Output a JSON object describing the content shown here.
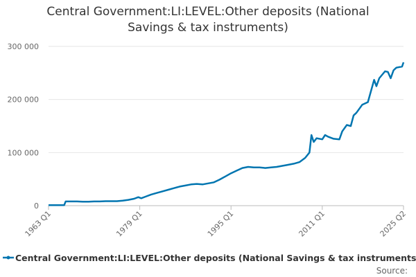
{
  "chart_data": {
    "type": "line",
    "title": "Central Government:LI:LEVEL:Other deposits (National Savings & tax instruments)",
    "source": "Source:",
    "x": [
      1963,
      1964,
      1965,
      1965.75,
      1966,
      1967,
      1968,
      1969,
      1970,
      1971,
      1972,
      1973,
      1974,
      1975,
      1976,
      1977,
      1978,
      1978.75,
      1979.25,
      1980,
      1981,
      1982,
      1983,
      1984,
      1985,
      1986,
      1987,
      1988,
      1989,
      1990,
      1991,
      1992,
      1993,
      1994,
      1995,
      1996,
      1997,
      1998,
      1999,
      2000,
      2001,
      2002,
      2003,
      2004,
      2005,
      2006,
      2007,
      2008,
      2008.75,
      2009.1,
      2009.5,
      2010,
      2011,
      2011.5,
      2012,
      2013,
      2014,
      2014.5,
      2015.3,
      2016,
      2016.5,
      2017,
      2018,
      2019,
      2020.1,
      2020.5,
      2021,
      2022,
      2022.5,
      2023,
      2023.5,
      2024,
      2025,
      2025.25
    ],
    "series": [
      {
        "name": "Central Government:LI:LEVEL:Other deposits (National Savings & tax instruments)",
        "color": "#0075b0",
        "values": [
          1000,
          1000,
          1000,
          1000,
          8000,
          8000,
          8000,
          7500,
          7500,
          8000,
          8000,
          8500,
          8500,
          8500,
          9500,
          11000,
          13000,
          16000,
          14000,
          17000,
          21000,
          24000,
          27000,
          30000,
          33000,
          36000,
          38000,
          40000,
          41000,
          40000,
          42000,
          44000,
          49000,
          55000,
          61000,
          66000,
          71000,
          73000,
          72000,
          72000,
          71000,
          72000,
          73000,
          75000,
          77000,
          79000,
          82000,
          90000,
          100000,
          133000,
          120000,
          127000,
          125000,
          133000,
          130000,
          126000,
          125000,
          140000,
          152000,
          150000,
          170000,
          175000,
          190000,
          195000,
          237000,
          225000,
          240000,
          253000,
          252000,
          240000,
          255000,
          260000,
          262000,
          270000
        ]
      }
    ],
    "xlim": [
      1963,
      2025.25
    ],
    "xticks": [
      {
        "value": 1963,
        "label": "1963 Q1"
      },
      {
        "value": 1979,
        "label": "1979 Q1"
      },
      {
        "value": 1995,
        "label": "1995 Q1"
      },
      {
        "value": 2011,
        "label": "2011 Q1"
      },
      {
        "value": 2025.25,
        "label": "2025 Q2"
      }
    ],
    "ylim": [
      0,
      300000
    ],
    "yticks": [
      0,
      {
        "value": 100000,
        "label": "100 000"
      },
      {
        "value": 200000,
        "label": "200 000"
      },
      {
        "value": 300000,
        "label": "300 000"
      }
    ],
    "grid": true
  }
}
